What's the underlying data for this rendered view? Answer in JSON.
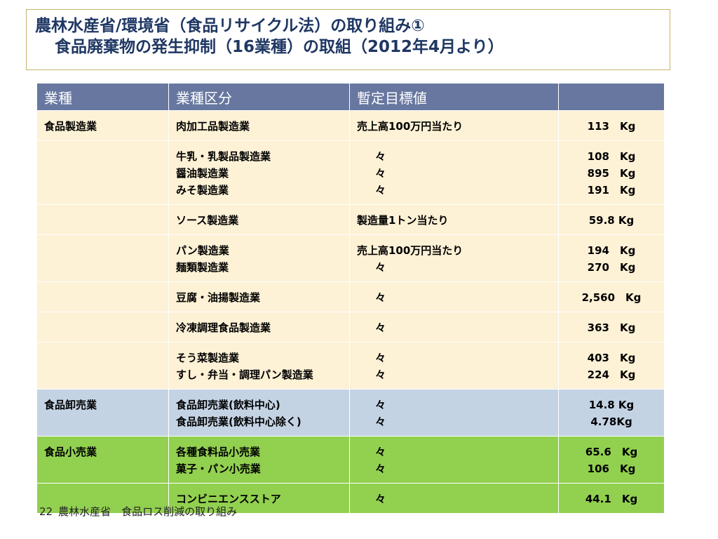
{
  "title": {
    "line1": "農林水産省/環境省（食品リサイクル法）の取り組み①",
    "line2": "食品廃棄物の発生抑制（16業種）の取組（2012年4月より）"
  },
  "table": {
    "headers": [
      "業種",
      "業種区分",
      "暫定目標値",
      ""
    ],
    "rows": [
      {
        "c1": "食品製造業",
        "c2": [
          "肉加工品製造業"
        ],
        "c3": [
          "売上高100万円当たり"
        ],
        "c4": [
          "113　Kg"
        ]
      },
      {
        "c1": "",
        "c2": [
          "牛乳・乳製品製造業",
          "醤油製造業",
          "みそ製造業"
        ],
        "c3": [
          "々",
          "々",
          "々"
        ],
        "c4": [
          "108　Kg",
          "895　Kg",
          "191　Kg"
        ]
      },
      {
        "c1": "",
        "c2": [
          "ソース製造業"
        ],
        "c3": [
          "製造量1トン当たり"
        ],
        "c4": [
          "59.8 Kg"
        ]
      },
      {
        "c1": "",
        "c2": [
          "パン製造業",
          "麺類製造業"
        ],
        "c3": [
          "売上高100万円当たり",
          "々"
        ],
        "c4": [
          "194　Kg",
          "270　Kg"
        ]
      },
      {
        "c1": "",
        "c2": [
          "豆腐・油揚製造業"
        ],
        "c3": [
          "々"
        ],
        "c4": [
          "2,560　Kg"
        ]
      },
      {
        "c1": "",
        "c2": [
          "冷凍調理食品製造業"
        ],
        "c3": [
          "々"
        ],
        "c4": [
          "363　Kg"
        ]
      },
      {
        "c1": "",
        "c2": [
          "そう菜製造業",
          "すし・弁当・調理パン製造業"
        ],
        "c3": [
          "々",
          "々"
        ],
        "c4": [
          "403　Kg",
          "224　Kg"
        ]
      },
      {
        "c1": "食品卸売業",
        "c2": [
          "食品卸売業(飲料中心)",
          "食品卸売業(飲料中心除く)"
        ],
        "c3": [
          "々",
          "々"
        ],
        "c4": [
          "14.8 Kg",
          "4.78Kg"
        ]
      },
      {
        "c1": "食品小売業",
        "c2": [
          "各種食料品小売業",
          "菓子・パン小売業"
        ],
        "c3": [
          "々",
          "々"
        ],
        "c4": [
          "65.6　Kg",
          "106　Kg"
        ]
      },
      {
        "c1": "",
        "c2": [
          "コンビニエンスストア"
        ],
        "c3": [
          "々"
        ],
        "c4": [
          "44.1　Kg"
        ]
      }
    ]
  },
  "footer": {
    "page": "22",
    "text": "農林水産省　食品ロス削減の取り組み"
  },
  "colors": {
    "header_bg": "#67779f",
    "manufacturing_bg": "#fdf1d6",
    "wholesale_bg": "#c4d3e4",
    "retail_bg": "#92d050",
    "title_text": "#1f3763"
  }
}
